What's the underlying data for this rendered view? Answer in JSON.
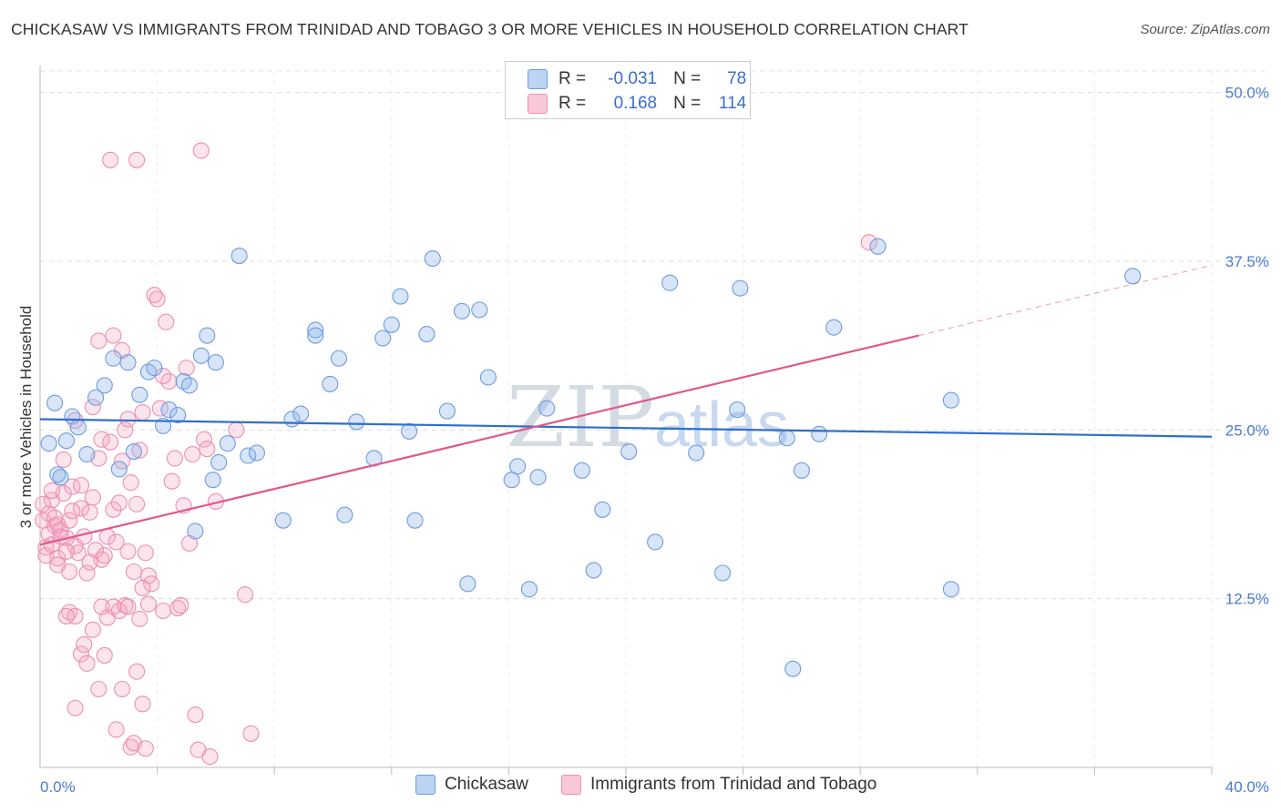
{
  "header": {
    "title": "CHICKASAW VS IMMIGRANTS FROM TRINIDAD AND TOBAGO 3 OR MORE VEHICLES IN HOUSEHOLD CORRELATION CHART",
    "source": "Source: ZipAtlas.com"
  },
  "watermark": {
    "zip": "ZIP",
    "atlas": "atlas"
  },
  "legend": {
    "rows": [
      {
        "r_label": "R =",
        "r_value": "-0.031",
        "n_label": "N =",
        "n_value": "78"
      },
      {
        "r_label": "R =",
        "r_value": "0.168",
        "n_label": "N =",
        "n_value": "114"
      }
    ]
  },
  "chart_data": {
    "type": "scatter",
    "title": "CHICKASAW VS IMMIGRANTS FROM TRINIDAD AND TOBAGO 3 OR MORE VEHICLES IN HOUSEHOLD CORRELATION CHART",
    "xlabel": "",
    "ylabel": "3 or more Vehicles in Household",
    "xlim": [
      0,
      40
    ],
    "ylim": [
      0,
      52
    ],
    "x_tick_labels": [
      "0.0%",
      "40.0%"
    ],
    "y_ticks": [
      12.5,
      25.0,
      37.5,
      50.0
    ],
    "y_tick_labels": [
      "12.5%",
      "25.0%",
      "37.5%",
      "50.0%"
    ],
    "grid": true,
    "legend_position": "top-center",
    "series": [
      {
        "name": "Chickasaw",
        "color": "#8db4e8",
        "line_color": "#2f6fcb",
        "r": "-0.031",
        "n": "78",
        "trend": {
          "x": [
            0,
            40
          ],
          "y": [
            25.8,
            24.5
          ]
        },
        "points": [
          [
            0.3,
            24.0
          ],
          [
            0.5,
            27.0
          ],
          [
            0.7,
            21.5
          ],
          [
            0.9,
            24.2
          ],
          [
            1.1,
            26.0
          ],
          [
            1.3,
            25.2
          ],
          [
            1.6,
            23.2
          ],
          [
            1.9,
            27.4
          ],
          [
            2.2,
            28.3
          ],
          [
            2.5,
            30.3
          ],
          [
            2.7,
            22.1
          ],
          [
            3.0,
            30.0
          ],
          [
            3.2,
            23.4
          ],
          [
            3.4,
            27.6
          ],
          [
            3.7,
            29.3
          ],
          [
            3.9,
            29.6
          ],
          [
            4.2,
            25.3
          ],
          [
            4.4,
            26.5
          ],
          [
            4.7,
            26.1
          ],
          [
            4.9,
            28.6
          ],
          [
            5.1,
            28.3
          ],
          [
            5.3,
            17.5
          ],
          [
            5.5,
            30.5
          ],
          [
            5.7,
            32.0
          ],
          [
            5.9,
            21.3
          ],
          [
            6.1,
            22.6
          ],
          [
            6.4,
            24.0
          ],
          [
            6.8,
            37.9
          ],
          [
            7.1,
            23.1
          ],
          [
            7.4,
            23.3
          ],
          [
            8.3,
            18.3
          ],
          [
            8.6,
            25.8
          ],
          [
            8.9,
            26.2
          ],
          [
            9.4,
            32.4
          ],
          [
            9.9,
            28.4
          ],
          [
            10.2,
            30.3
          ],
          [
            10.4,
            18.7
          ],
          [
            10.8,
            25.6
          ],
          [
            11.4,
            22.9
          ],
          [
            11.7,
            31.8
          ],
          [
            12.0,
            32.8
          ],
          [
            12.3,
            34.9
          ],
          [
            12.6,
            24.9
          ],
          [
            12.8,
            18.3
          ],
          [
            13.2,
            32.1
          ],
          [
            13.4,
            37.7
          ],
          [
            13.9,
            26.4
          ],
          [
            14.4,
            33.8
          ],
          [
            14.6,
            13.6
          ],
          [
            15.0,
            33.9
          ],
          [
            15.3,
            28.9
          ],
          [
            16.1,
            21.3
          ],
          [
            16.3,
            22.3
          ],
          [
            16.7,
            13.2
          ],
          [
            17.0,
            21.5
          ],
          [
            17.3,
            26.6
          ],
          [
            18.5,
            22.0
          ],
          [
            18.9,
            14.6
          ],
          [
            19.2,
            19.1
          ],
          [
            20.1,
            23.4
          ],
          [
            21.0,
            16.7
          ],
          [
            21.5,
            35.9
          ],
          [
            22.4,
            23.3
          ],
          [
            23.3,
            14.4
          ],
          [
            23.8,
            26.5
          ],
          [
            25.7,
            7.3
          ],
          [
            26.0,
            22.0
          ],
          [
            27.1,
            32.6
          ],
          [
            31.1,
            13.2
          ],
          [
            37.3,
            36.4
          ],
          [
            26.6,
            24.7
          ],
          [
            31.1,
            27.2
          ],
          [
            23.9,
            35.5
          ],
          [
            0.6,
            21.7
          ],
          [
            9.4,
            32.0
          ],
          [
            6.0,
            30.0
          ],
          [
            25.5,
            24.4
          ],
          [
            28.6,
            38.6
          ]
        ]
      },
      {
        "name": "Immigrants from Trinidad and Tobago",
        "color": "#f4a6c1",
        "line_color": "#e0588c",
        "r": "0.168",
        "n": "114",
        "trend": {
          "x": [
            0,
            30
          ],
          "y": [
            16.5,
            32.0
          ],
          "x_dashed": [
            30,
            40
          ],
          "y_dashed": [
            32.0,
            37.2
          ]
        },
        "points": [
          [
            0.1,
            19.5
          ],
          [
            0.1,
            18.3
          ],
          [
            0.2,
            16.3
          ],
          [
            0.2,
            15.7
          ],
          [
            0.3,
            17.3
          ],
          [
            0.3,
            18.8
          ],
          [
            0.4,
            16.5
          ],
          [
            0.4,
            19.8
          ],
          [
            0.5,
            17.9
          ],
          [
            0.6,
            18.0
          ],
          [
            0.6,
            15.5
          ],
          [
            0.7,
            17.6
          ],
          [
            0.8,
            20.3
          ],
          [
            0.8,
            22.8
          ],
          [
            0.9,
            17.0
          ],
          [
            1.0,
            18.3
          ],
          [
            1.0,
            14.5
          ],
          [
            1.1,
            20.8
          ],
          [
            1.2,
            16.4
          ],
          [
            1.2,
            25.7
          ],
          [
            1.3,
            15.9
          ],
          [
            1.4,
            19.2
          ],
          [
            1.5,
            17.1
          ],
          [
            1.6,
            14.4
          ],
          [
            1.7,
            18.9
          ],
          [
            1.8,
            20.0
          ],
          [
            1.9,
            16.1
          ],
          [
            2.0,
            22.9
          ],
          [
            2.1,
            15.4
          ],
          [
            2.2,
            15.7
          ],
          [
            2.3,
            17.1
          ],
          [
            2.4,
            24.1
          ],
          [
            2.5,
            19.1
          ],
          [
            2.6,
            16.7
          ],
          [
            2.7,
            19.6
          ],
          [
            2.8,
            22.7
          ],
          [
            2.9,
            25.0
          ],
          [
            3.0,
            16.0
          ],
          [
            3.1,
            21.1
          ],
          [
            3.2,
            14.5
          ],
          [
            3.3,
            19.5
          ],
          [
            3.4,
            23.5
          ],
          [
            3.5,
            26.3
          ],
          [
            3.6,
            15.9
          ],
          [
            3.7,
            14.2
          ],
          [
            3.8,
            13.6
          ],
          [
            3.9,
            35.0
          ],
          [
            4.0,
            34.7
          ],
          [
            4.1,
            26.6
          ],
          [
            4.2,
            11.6
          ],
          [
            4.3,
            33.0
          ],
          [
            4.4,
            28.6
          ],
          [
            4.5,
            21.2
          ],
          [
            4.6,
            22.9
          ],
          [
            4.7,
            11.8
          ],
          [
            4.8,
            12.0
          ],
          [
            4.9,
            19.4
          ],
          [
            5.0,
            29.6
          ],
          [
            5.1,
            16.6
          ],
          [
            5.3,
            3.9
          ],
          [
            5.4,
            1.3
          ],
          [
            5.5,
            45.7
          ],
          [
            5.6,
            24.3
          ],
          [
            5.7,
            23.6
          ],
          [
            5.8,
            0.8
          ],
          [
            6.0,
            19.7
          ],
          [
            2.4,
            45.0
          ],
          [
            3.3,
            45.0
          ],
          [
            1.0,
            11.5
          ],
          [
            1.2,
            11.2
          ],
          [
            1.4,
            8.4
          ],
          [
            1.6,
            7.7
          ],
          [
            1.8,
            10.2
          ],
          [
            2.0,
            5.8
          ],
          [
            2.1,
            11.9
          ],
          [
            2.2,
            8.3
          ],
          [
            2.3,
            11.1
          ],
          [
            2.5,
            11.9
          ],
          [
            2.6,
            2.8
          ],
          [
            2.7,
            11.6
          ],
          [
            2.8,
            5.8
          ],
          [
            2.9,
            12.0
          ],
          [
            3.0,
            11.9
          ],
          [
            3.1,
            1.5
          ],
          [
            3.2,
            1.8
          ],
          [
            3.3,
            7.1
          ],
          [
            3.4,
            11.0
          ],
          [
            3.5,
            4.7
          ],
          [
            3.6,
            1.4
          ],
          [
            3.7,
            12.1
          ],
          [
            1.2,
            4.4
          ],
          [
            1.5,
            9.1
          ],
          [
            0.9,
            11.2
          ],
          [
            2.0,
            31.6
          ],
          [
            2.5,
            32.0
          ],
          [
            1.8,
            26.7
          ],
          [
            1.4,
            20.9
          ],
          [
            2.1,
            24.3
          ],
          [
            0.5,
            18.5
          ],
          [
            0.7,
            17.1
          ],
          [
            3.0,
            25.8
          ],
          [
            7.0,
            12.8
          ],
          [
            7.2,
            2.5
          ],
          [
            28.3,
            38.9
          ],
          [
            0.4,
            20.5
          ],
          [
            1.1,
            19.0
          ],
          [
            0.9,
            16.0
          ],
          [
            1.7,
            15.2
          ],
          [
            2.8,
            30.9
          ],
          [
            6.7,
            25.0
          ],
          [
            5.2,
            23.2
          ],
          [
            3.5,
            13.3
          ],
          [
            0.6,
            15.0
          ],
          [
            4.2,
            29.0
          ]
        ]
      }
    ]
  },
  "bottom_legend": [
    {
      "label": "Chickasaw"
    },
    {
      "label": "Immigrants from Trinidad and Tobago"
    }
  ],
  "colors": {
    "blue_fill": "#8db4e8",
    "blue_line": "#2f6fcb",
    "pink_fill": "#f4a6c1",
    "pink_line": "#e0588c",
    "axis_label": "#4a7bd0"
  }
}
